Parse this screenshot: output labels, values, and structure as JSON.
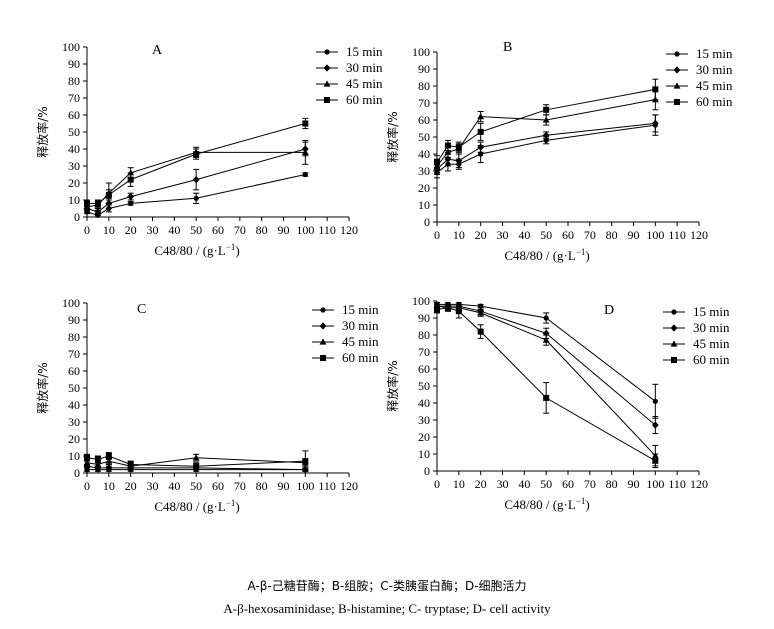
{
  "caption": {
    "cn": "A-β-己糖苷酶；B-组胺；C-类胰蛋白酶；D-细胞活力",
    "en": "A-β-hexosaminidase; B-histamine; C- tryptase; D- cell activity"
  },
  "chart_data": [
    {
      "type": "line",
      "panel_label": "A",
      "xlabel": "C48/80 / (g·L",
      "xlabel_sup": "−1",
      "xlabel_close": ")",
      "ylabel": "释放率/%",
      "xlim": [
        0,
        120
      ],
      "ylim": [
        0,
        100
      ],
      "x_ticks": [
        "0",
        "10",
        "20",
        "30",
        "40",
        "50",
        "60",
        "70",
        "80",
        "90",
        "100",
        "110",
        "120"
      ],
      "y_ticks": [
        "0",
        "10",
        "20",
        "30",
        "40",
        "50",
        "60",
        "70",
        "80",
        "90",
        "100"
      ],
      "x": [
        0,
        5,
        10,
        20,
        50,
        100
      ],
      "grid": false,
      "legend_position": "top-right",
      "series": [
        {
          "name": "15 min",
          "marker": "circle",
          "values": [
            3,
            1,
            5,
            8,
            11,
            25
          ],
          "errors": [
            1,
            1,
            2,
            1,
            3,
            1
          ]
        },
        {
          "name": "30 min",
          "marker": "diamond",
          "values": [
            5,
            3,
            8,
            12,
            22,
            40
          ],
          "errors": [
            2,
            2,
            3,
            2,
            6,
            4
          ]
        },
        {
          "name": "45 min",
          "marker": "triangle",
          "values": [
            6,
            7,
            14,
            26,
            38,
            38
          ],
          "errors": [
            2,
            3,
            6,
            3,
            3,
            7
          ]
        },
        {
          "name": "60 min",
          "marker": "square",
          "values": [
            8,
            8,
            13,
            22,
            37,
            55
          ],
          "errors": [
            2,
            2,
            3,
            4,
            3,
            3
          ]
        }
      ]
    },
    {
      "type": "line",
      "panel_label": "B",
      "xlabel": "C48/80 / (g·L",
      "xlabel_sup": "−1",
      "xlabel_close": ")",
      "ylabel": "释放率/%",
      "xlim": [
        0,
        120
      ],
      "ylim": [
        0,
        100
      ],
      "x_ticks": [
        "0",
        "10",
        "20",
        "30",
        "40",
        "50",
        "60",
        "70",
        "80",
        "90",
        "100",
        "110",
        "120"
      ],
      "y_ticks": [
        "0",
        "10",
        "20",
        "30",
        "40",
        "50",
        "60",
        "70",
        "80",
        "90",
        "100"
      ],
      "x": [
        0,
        5,
        10,
        20,
        50,
        100
      ],
      "grid": false,
      "legend_position": "top-right",
      "series": [
        {
          "name": "15 min",
          "marker": "circle",
          "values": [
            29,
            34,
            34,
            40,
            48,
            57
          ],
          "errors": [
            3,
            4,
            3,
            5,
            2,
            6
          ]
        },
        {
          "name": "30 min",
          "marker": "diamond",
          "values": [
            31,
            37,
            36,
            44,
            51,
            58
          ],
          "errors": [
            3,
            4,
            4,
            3,
            2,
            5
          ]
        },
        {
          "name": "45 min",
          "marker": "triangle",
          "values": [
            33,
            41,
            43,
            62,
            60,
            72
          ],
          "errors": [
            4,
            3,
            3,
            3,
            3,
            6
          ]
        },
        {
          "name": "60 min",
          "marker": "square",
          "values": [
            35,
            45,
            44,
            53,
            66,
            78
          ],
          "errors": [
            4,
            3,
            3,
            5,
            3,
            6
          ]
        }
      ]
    },
    {
      "type": "line",
      "panel_label": "C",
      "xlabel": "C48/80 / (g·L",
      "xlabel_sup": "−1",
      "xlabel_close": ")",
      "ylabel": "释放率/%",
      "xlim": [
        0,
        120
      ],
      "ylim": [
        0,
        100
      ],
      "x_ticks": [
        "0",
        "10",
        "20",
        "30",
        "40",
        "50",
        "60",
        "70",
        "80",
        "90",
        "100",
        "110",
        "120"
      ],
      "y_ticks": [
        "0",
        "10",
        "20",
        "30",
        "40",
        "50",
        "60",
        "70",
        "80",
        "90",
        "100"
      ],
      "x": [
        0,
        5,
        10,
        20,
        50,
        100
      ],
      "grid": false,
      "legend_position": "top-right",
      "series": [
        {
          "name": "15 min",
          "marker": "circle",
          "values": [
            2,
            2,
            2,
            2,
            2,
            2
          ],
          "errors": [
            1,
            1,
            1,
            1,
            1,
            1
          ]
        },
        {
          "name": "30 min",
          "marker": "diamond",
          "values": [
            4,
            3,
            3,
            3,
            3,
            2
          ],
          "errors": [
            1,
            1,
            1,
            1,
            1,
            1
          ]
        },
        {
          "name": "45 min",
          "marker": "triangle",
          "values": [
            6,
            5,
            7,
            4,
            9,
            6
          ],
          "errors": [
            2,
            2,
            2,
            2,
            2,
            2
          ]
        },
        {
          "name": "60 min",
          "marker": "square",
          "values": [
            9,
            8,
            10,
            5,
            4,
            7
          ],
          "errors": [
            2,
            2,
            2,
            2,
            2,
            6
          ]
        }
      ]
    },
    {
      "type": "line",
      "panel_label": "D",
      "xlabel": "C48/80 / (g·L",
      "xlabel_sup": "−1",
      "xlabel_close": ")",
      "ylabel": "释放率/%",
      "xlim": [
        0,
        120
      ],
      "ylim": [
        0,
        100
      ],
      "x_ticks": [
        "0",
        "10",
        "20",
        "30",
        "40",
        "50",
        "60",
        "70",
        "80",
        "90",
        "100",
        "110",
        "120"
      ],
      "y_ticks": [
        "0",
        "10",
        "20",
        "30",
        "40",
        "50",
        "60",
        "70",
        "80",
        "90",
        "100"
      ],
      "x": [
        0,
        5,
        10,
        20,
        50,
        100
      ],
      "grid": false,
      "legend_position": "top-right",
      "series": [
        {
          "name": "15 min",
          "marker": "circle",
          "values": [
            98,
            98,
            98,
            97,
            90,
            41
          ],
          "errors": [
            1,
            1,
            1,
            1,
            3,
            10
          ]
        },
        {
          "name": "30 min",
          "marker": "diamond",
          "values": [
            97,
            97,
            97,
            94,
            81,
            27
          ],
          "errors": [
            1,
            1,
            1,
            2,
            3,
            5
          ]
        },
        {
          "name": "45 min",
          "marker": "triangle",
          "values": [
            97,
            96,
            96,
            93,
            77,
            9
          ],
          "errors": [
            2,
            2,
            2,
            2,
            3,
            6
          ]
        },
        {
          "name": "60 min",
          "marker": "square",
          "values": [
            95,
            96,
            94,
            82,
            43,
            6
          ],
          "errors": [
            2,
            2,
            4,
            4,
            9,
            4
          ]
        }
      ]
    }
  ]
}
